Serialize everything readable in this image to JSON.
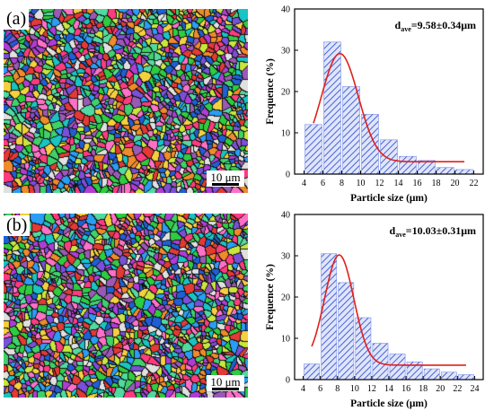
{
  "panels": [
    {
      "label": "(a)",
      "scalebar": "10 μm"
    },
    {
      "label": "(b)",
      "scalebar": "10 μm"
    }
  ],
  "chart_data": [
    {
      "type": "bar",
      "panel": "(a)",
      "xlabel": "Particle size (μm)",
      "ylabel": "Frequence (%)",
      "annotation_main": "d",
      "annotation_sub": "ave",
      "annotation_value": "=9.58±0.34μm",
      "xlim": [
        3,
        23
      ],
      "ylim": [
        0,
        40
      ],
      "xticks": [
        4,
        6,
        8,
        10,
        12,
        14,
        16,
        18,
        20,
        22
      ],
      "yticks": [
        0,
        10,
        20,
        30,
        40
      ],
      "bars": [
        {
          "x": 5,
          "value": 12
        },
        {
          "x": 7,
          "value": 32
        },
        {
          "x": 9,
          "value": 21.2
        },
        {
          "x": 11,
          "value": 14.5
        },
        {
          "x": 13,
          "value": 8.3
        },
        {
          "x": 15,
          "value": 4.3
        },
        {
          "x": 17,
          "value": 3.3
        },
        {
          "x": 19,
          "value": 1.6
        },
        {
          "x": 21,
          "value": 1.1
        }
      ],
      "fit_curve": {
        "mu": 7.8,
        "sigma": 1.95,
        "amplitude": 26.2,
        "offset": 3,
        "xrange": [
          5,
          21
        ]
      },
      "bar_color": "#4a62d4",
      "curve_color": "#e0201b"
    },
    {
      "type": "bar",
      "panel": "(b)",
      "xlabel": "Particle size (μm)",
      "ylabel": "Frequence (%)",
      "annotation_main": "d",
      "annotation_sub": "ave",
      "annotation_value": "=10.03±0.31μm",
      "xlim": [
        3,
        25
      ],
      "ylim": [
        0,
        40
      ],
      "xticks": [
        4,
        6,
        8,
        10,
        12,
        14,
        16,
        18,
        20,
        22,
        24
      ],
      "yticks": [
        0,
        10,
        20,
        30,
        40
      ],
      "bars": [
        {
          "x": 5,
          "value": 3.8
        },
        {
          "x": 7,
          "value": 30.5
        },
        {
          "x": 9,
          "value": 23.5
        },
        {
          "x": 11,
          "value": 15
        },
        {
          "x": 13,
          "value": 8.8
        },
        {
          "x": 15,
          "value": 6.2
        },
        {
          "x": 17,
          "value": 4.3
        },
        {
          "x": 19,
          "value": 2.6
        },
        {
          "x": 21,
          "value": 1.8
        },
        {
          "x": 23,
          "value": 1.2
        }
      ],
      "fit_curve": {
        "mu": 8.2,
        "sigma": 1.7,
        "amplitude": 26.7,
        "offset": 3.5,
        "xrange": [
          5,
          23
        ]
      },
      "bar_color": "#4a62d4",
      "curve_color": "#e0201b"
    }
  ]
}
